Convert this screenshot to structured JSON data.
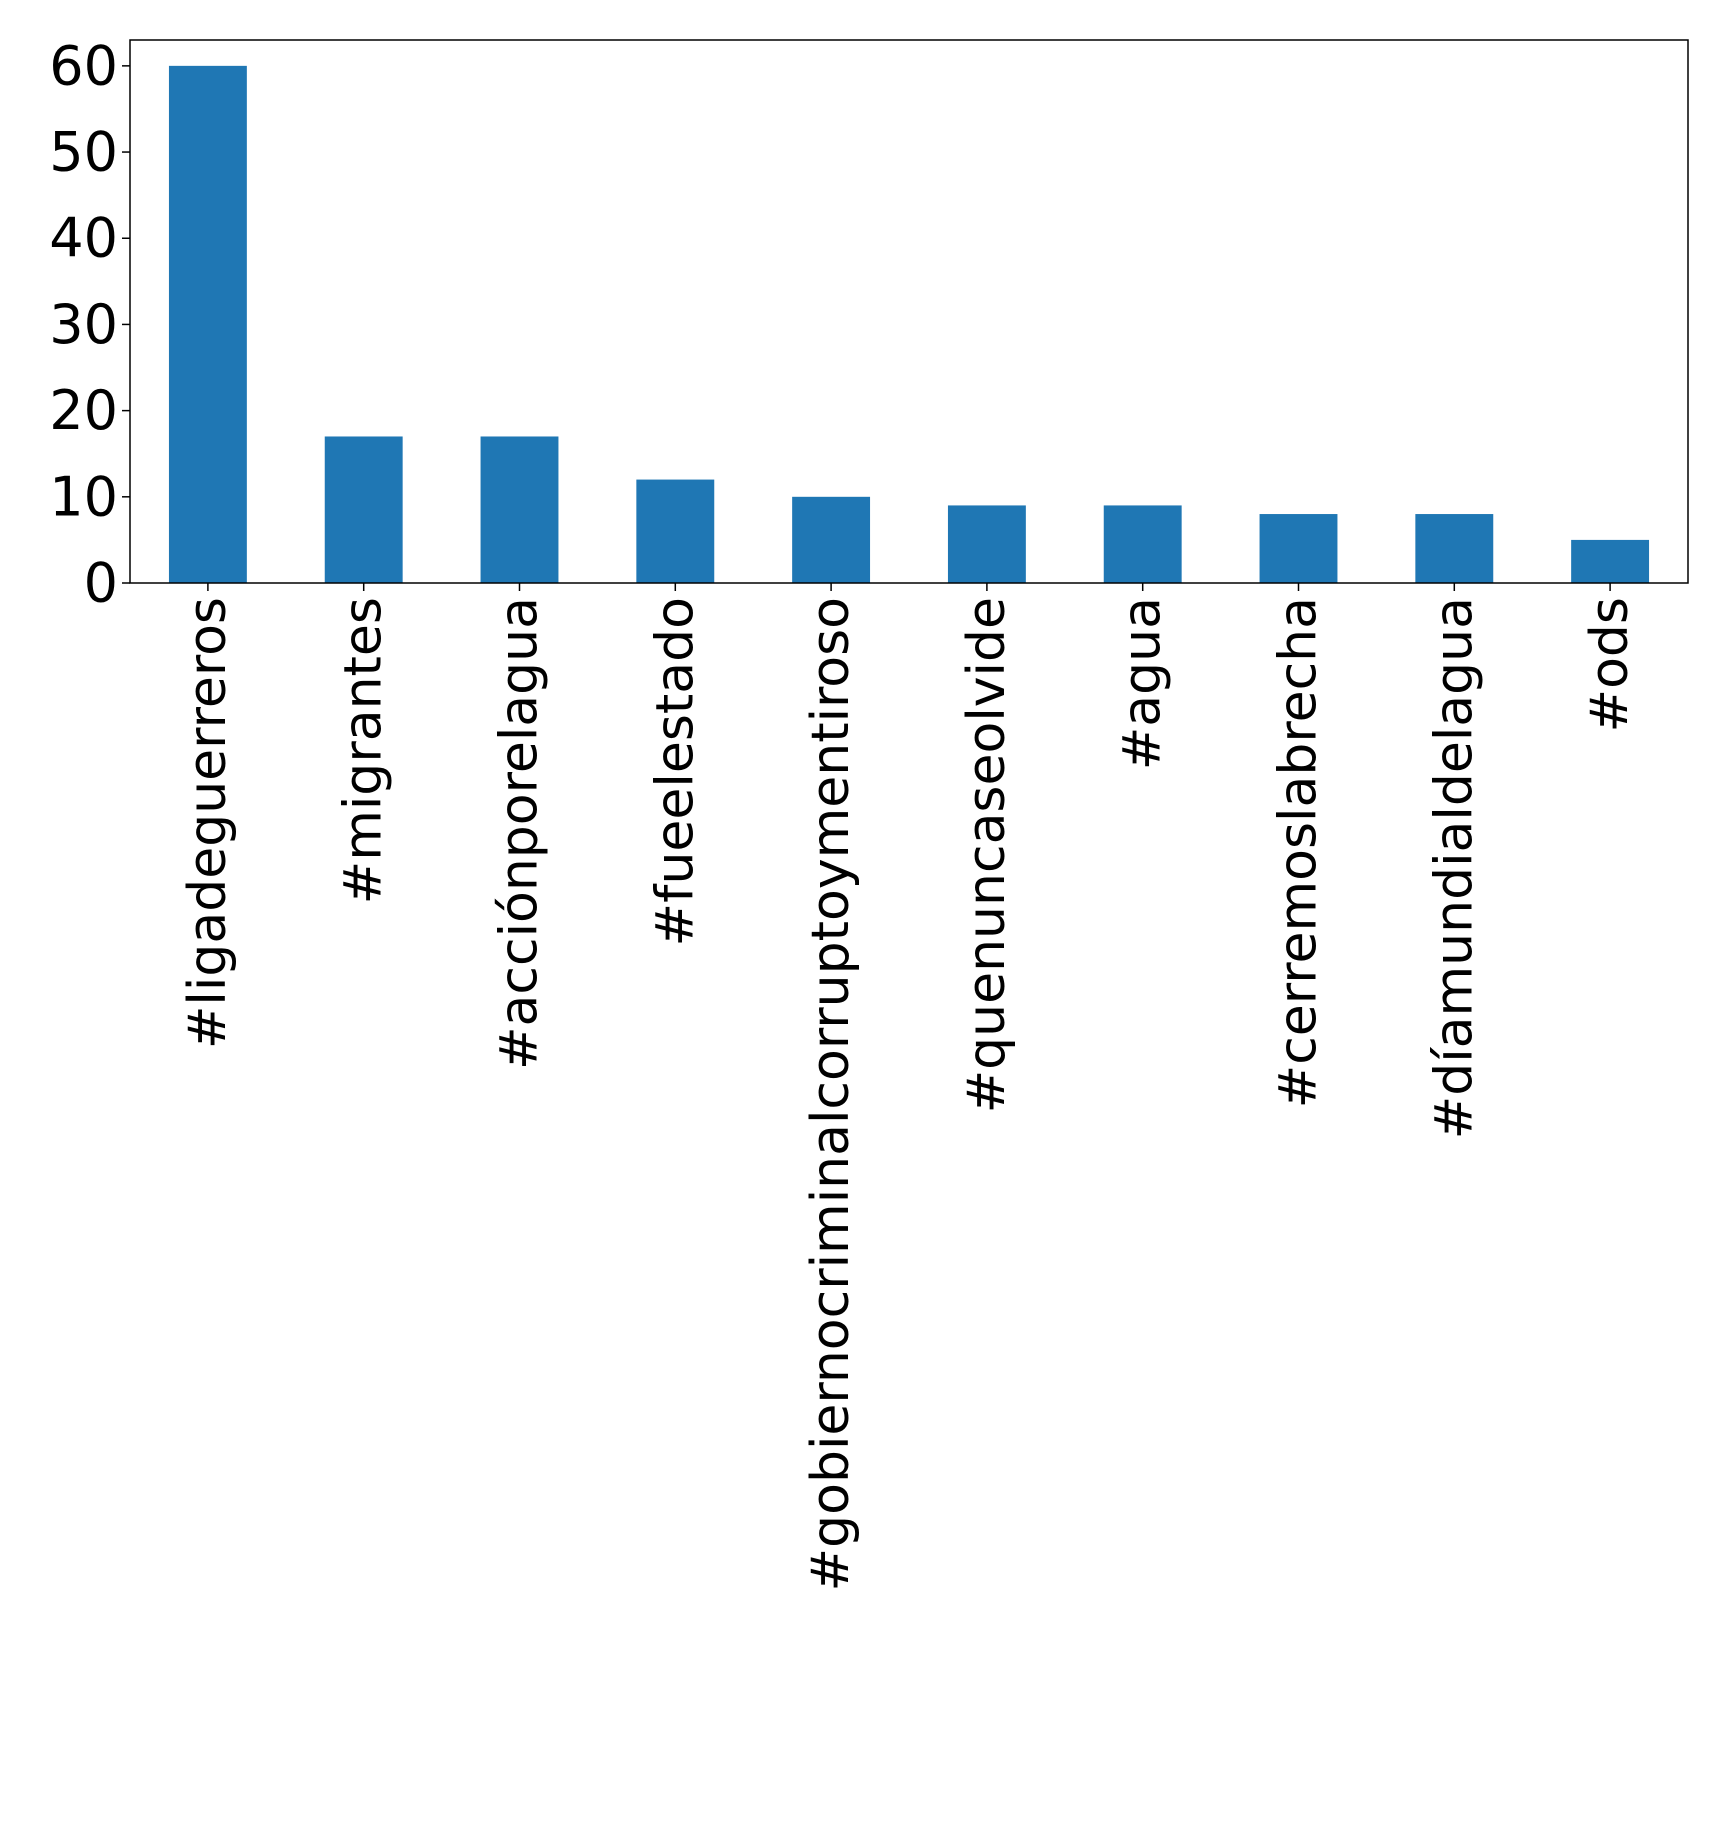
{
  "chart_data": {
    "type": "bar",
    "title": "",
    "xlabel": "",
    "ylabel": "",
    "categories": [
      "#ligadeguerreros",
      "#migrantes",
      "#acciónporelagua",
      "#fueelestado",
      "#gobiernocriminalcorruptoymentiroso",
      "#quenuncaseolvide",
      "#agua",
      "#cerremoslabrecha",
      "#díamundialdelagua",
      "#ods"
    ],
    "values": [
      60,
      17,
      17,
      12,
      10,
      9,
      9,
      8,
      8,
      5
    ],
    "ylim": [
      0,
      63
    ],
    "yticks": [
      0,
      10,
      20,
      30,
      40,
      50,
      60
    ],
    "grid": false,
    "legend": "none",
    "colors": {
      "bar": "#1f77b4",
      "axis": "#000000"
    }
  }
}
